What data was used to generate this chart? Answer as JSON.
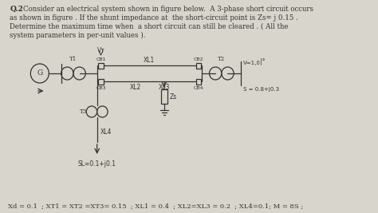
{
  "bg_color": "#ccccbb",
  "text_color": "#333333",
  "title": "Q.2",
  "line1": "Consider an electrical system shown in figure below.  A 3-phase short circuit occurs",
  "line2": "as shown in figure . If the shunt impedance at  the short-circuit point is Zs= j 0.15 .",
  "line3": "Determine the maximum time when  a short circuit can still be cleared . ( All the",
  "line4": "system parameters in per-unit values ).",
  "params": "Xd = 0.1  ; XT1 = XT2 =XT3= 0.15  ; XL1 = 0.4  ; XL2=XL3 = 0.2  ; XL4=0.1; M = 8S ;",
  "bg_color_light": "#d8d5cc"
}
